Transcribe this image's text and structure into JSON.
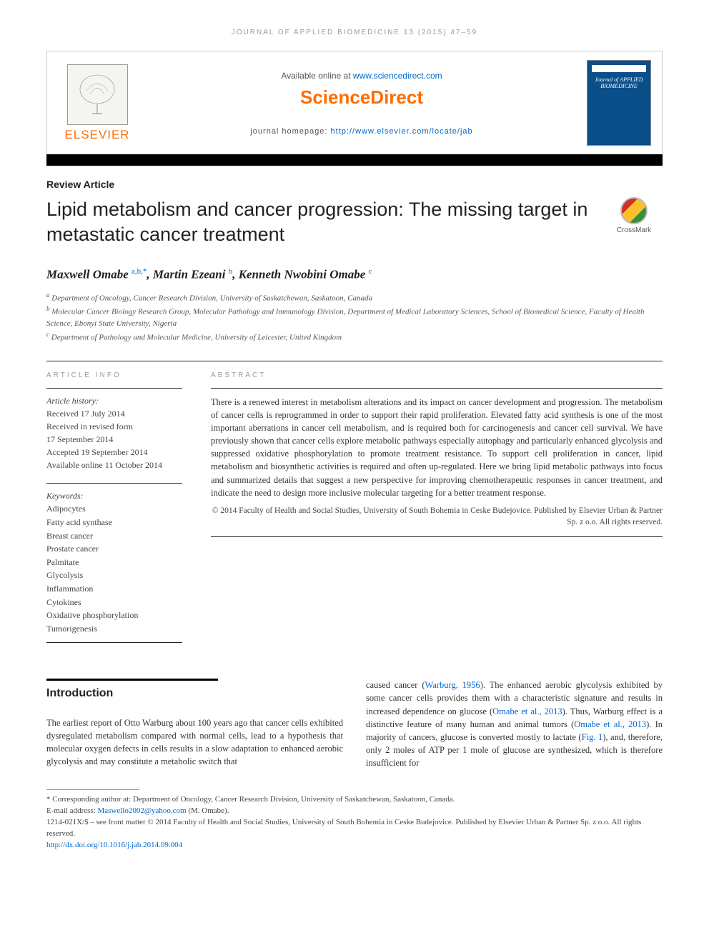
{
  "running_head": "JOURNAL OF APPLIED BIOMEDICINE 13 (2015) 47–59",
  "header": {
    "available_text": "Available online at ",
    "available_url": "www.sciencedirect.com",
    "sciencedirect": "ScienceDirect",
    "homepage_label": "journal homepage: ",
    "homepage_url": "http://www.elsevier.com/locate/jab",
    "elsevier": "ELSEVIER",
    "journal_cover_title": "Journal of APPLIED BIOMEDICINE"
  },
  "article": {
    "type": "Review Article",
    "title": "Lipid metabolism and cancer progression: The missing target in metastatic cancer treatment",
    "crossmark": "CrossMark",
    "authors_html": "Maxwell Omabe <sup>a,b,*</sup>, Martin Ezeani <sup>b</sup>, Kenneth Nwobini Omabe <sup>c</sup>",
    "affiliations": [
      "a Department of Oncology, Cancer Research Division, University of Saskatchewan, Saskatoon, Canada",
      "b Molecular Cancer Biology Research Group, Molecular Pathology and Immunology Division, Department of Medical Laboratory Sciences, School of Biomedical Science, Faculty of Health Science, Ebonyi State University, Nigeria",
      "c Department of Pathology and Molecular Medicine, University of Leicester, United Kingdom"
    ]
  },
  "info": {
    "heading": "ARTICLE INFO",
    "history_label": "Article history:",
    "history": [
      "Received 17 July 2014",
      "Received in revised form",
      "17 September 2014",
      "Accepted 19 September 2014",
      "Available online 11 October 2014"
    ],
    "keywords_label": "Keywords:",
    "keywords": [
      "Adipocytes",
      "Fatty acid synthase",
      "Breast cancer",
      "Prostate cancer",
      "Palmitate",
      "Glycolysis",
      "Inflammation",
      "Cytokines",
      "Oxidative phosphorylation",
      "Tumorigenesis"
    ]
  },
  "abstract": {
    "heading": "ABSTRACT",
    "text": "There is a renewed interest in metabolism alterations and its impact on cancer development and progression. The metabolism of cancer cells is reprogrammed in order to support their rapid proliferation. Elevated fatty acid synthesis is one of the most important aberrations in cancer cell metabolism, and is required both for carcinogenesis and cancer cell survival. We have previously shown that cancer cells explore metabolic pathways especially autophagy and particularly enhanced glycolysis and suppressed oxidative phosphorylation to promote treatment resistance. To support cell proliferation in cancer, lipid metabolism and biosynthetic activities is required and often up-regulated. Here we bring lipid metabolic pathways into focus and summarized details that suggest a new perspective for improving chemotherapeutic responses in cancer treatment, and indicate the need to design more inclusive molecular targeting for a better treatment response.",
    "copyright": "© 2014 Faculty of Health and Social Studies, University of South Bohemia in Ceske Budejovice. Published by Elsevier Urban & Partner Sp. z o.o. All rights reserved."
  },
  "introduction": {
    "heading": "Introduction",
    "col1": "The earliest report of Otto Warburg about 100 years ago that cancer cells exhibited dysregulated metabolism compared with normal cells, lead to a hypothesis that molecular oxygen defects in cells results in a slow adaptation to enhanced aerobic glycolysis and may constitute a metabolic switch that",
    "col2_pre": "caused cancer (",
    "col2_ref1": "Warburg, 1956",
    "col2_mid1": "). The enhanced aerobic glycolysis exhibited by some cancer cells provides them with a characteristic signature and results in increased dependence on glucose (",
    "col2_ref2": "Omabe et al., 2013",
    "col2_mid2": "). Thus, Warburg effect is a distinctive feature of many human and animal tumors (",
    "col2_ref3": "Omabe et al., 2013",
    "col2_mid3": "). In majority of cancers, glucose is converted mostly to lactate (",
    "col2_ref4": "Fig. 1",
    "col2_post": "), and, therefore, only 2 moles of ATP per 1 mole of glucose are synthesized, which is therefore insufficient for"
  },
  "footnotes": {
    "corresponding": "* Corresponding author at: Department of Oncology, Cancer Research Division, University of Saskatchewan, Saskatoon, Canada.",
    "email_label": "E-mail address: ",
    "email": "Maswello2002@yahoo.com",
    "email_suffix": " (M. Omabe).",
    "issn": "1214-021X/$ – see front matter © 2014 Faculty of Health and Social Studies, University of South Bohemia in Ceske Budejovice. Published by Elsevier Urban & Partner Sp. z o.o. All rights reserved.",
    "doi": "http://dx.doi.org/10.1016/j.jab.2014.09.004"
  },
  "colors": {
    "link": "#0066cc",
    "orange": "#ff6c00",
    "text": "#333333",
    "muted": "#9a9a9a"
  }
}
